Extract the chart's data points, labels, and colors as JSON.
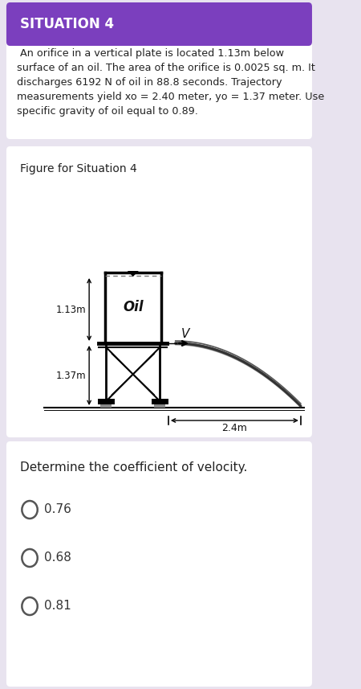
{
  "title": "SITUATION 4",
  "title_bg": "#7B3FBE",
  "title_fg": "#FFFFFF",
  "problem_text": " An orifice in a vertical plate is located 1.13m below\nsurface of an oil. The area of the orifice is 0.0025 sq. m. It\ndischarges 6192 N of oil in 88.8 seconds. Trajectory\nmeasurements yield xo = 2.40 meter, yo = 1.37 meter. Use\nspecific gravity of oil equal to 0.89.",
  "figure_title": "Figure for Situation 4",
  "fig_label_113": "1.13m",
  "fig_label_137": "1.37m",
  "fig_label_24": "2.4m",
  "fig_label_v": "V",
  "fig_label_oil": "Oil",
  "question_text": "Determine the coefficient of velocity.",
  "choices": [
    "0.76",
    "0.68",
    "0.81"
  ],
  "bg_color": "#E8E3EF",
  "card_color": "#FFFFFF",
  "text_color": "#222222",
  "choice_color": "#333333"
}
